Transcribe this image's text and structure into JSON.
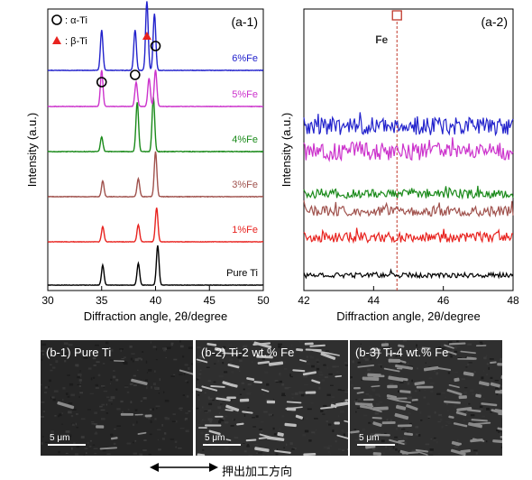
{
  "chart_data": [
    {
      "id": "a1",
      "type": "line",
      "panel_label": "(a-1)",
      "xlabel": "Diffraction angle, 2θ/degree",
      "ylabel": "Intensity (a.u.)",
      "xlim": [
        30,
        50
      ],
      "xticks": [
        30,
        35,
        40,
        45,
        50
      ],
      "legend": [
        {
          "marker": "open-circle",
          "label": ": α-Ti"
        },
        {
          "marker": "red-triangle",
          "label": ": β-Ti"
        }
      ],
      "series": [
        {
          "name": "Pure Ti",
          "color": "#000000",
          "peaks": [
            [
              35.1,
              0.55
            ],
            [
              38.4,
              0.6
            ],
            [
              40.2,
              1.1
            ]
          ]
        },
        {
          "name": "1%Fe",
          "color": "#e8231f",
          "peaks": [
            [
              35.1,
              0.4
            ],
            [
              38.4,
              0.45
            ],
            [
              40.1,
              0.9
            ]
          ]
        },
        {
          "name": "3%Fe",
          "color": "#a0524d",
          "peaks": [
            [
              35.1,
              0.35
            ],
            [
              38.4,
              0.4
            ],
            [
              40.0,
              1.0
            ]
          ]
        },
        {
          "name": "4%Fe",
          "color": "#1a8a1a",
          "peaks": [
            [
              35.0,
              0.3
            ],
            [
              38.3,
              1.0
            ],
            [
              39.8,
              1.1
            ]
          ]
        },
        {
          "name": "5%Fe",
          "color": "#cc33cc",
          "peaks": [
            [
              35.0,
              0.9
            ],
            [
              38.2,
              0.6
            ],
            [
              39.4,
              0.7
            ],
            [
              40.0,
              0.9
            ]
          ]
        },
        {
          "name": "6%Fe",
          "color": "#2222cc",
          "peaks": [
            [
              35.0,
              1.0
            ],
            [
              38.1,
              1.0
            ],
            [
              39.2,
              1.7
            ],
            [
              39.9,
              1.4
            ]
          ]
        }
      ],
      "annotations": [
        {
          "marker": "open-circle",
          "x": 35.0
        },
        {
          "marker": "open-circle",
          "x": 38.1
        },
        {
          "marker": "red-triangle",
          "x": 39.2
        },
        {
          "marker": "open-circle",
          "x": 40.0
        }
      ]
    },
    {
      "id": "a2",
      "type": "line",
      "panel_label": "(a-2)",
      "xlabel": "Diffraction angle, 2θ/degree",
      "ylabel": "Intensity (a.u.)",
      "xlim": [
        42,
        48
      ],
      "xticks": [
        42,
        44,
        46,
        48
      ],
      "reference_line": {
        "label": "Fe",
        "x": 44.67,
        "marker": "open-square",
        "color": "#c0392b"
      },
      "series": [
        {
          "name": "6%Fe",
          "color": "#2222cc",
          "noise": 0.7
        },
        {
          "name": "5%Fe",
          "color": "#cc33cc",
          "noise": 0.7
        },
        {
          "name": "4%Fe",
          "color": "#1a8a1a",
          "noise": 0.35
        },
        {
          "name": "3%Fe",
          "color": "#a0524d",
          "noise": 0.4
        },
        {
          "name": "1%Fe",
          "color": "#e8231f",
          "noise": 0.4
        },
        {
          "name": "Pure Ti",
          "color": "#000000",
          "noise": 0.2
        }
      ]
    }
  ],
  "micrographs": [
    {
      "title": "(b-1) Pure Ti",
      "scale": "5 μm",
      "grain_fraction": 0.05
    },
    {
      "title": "(b-2) Ti-2 wt.% Fe",
      "scale": "5 μm",
      "grain_fraction": 0.3
    },
    {
      "title": "(b-3) Ti-4 wt.% Fe",
      "scale": "5 μm",
      "grain_fraction": 0.45
    }
  ],
  "extrusion_direction": "押出加工方向"
}
